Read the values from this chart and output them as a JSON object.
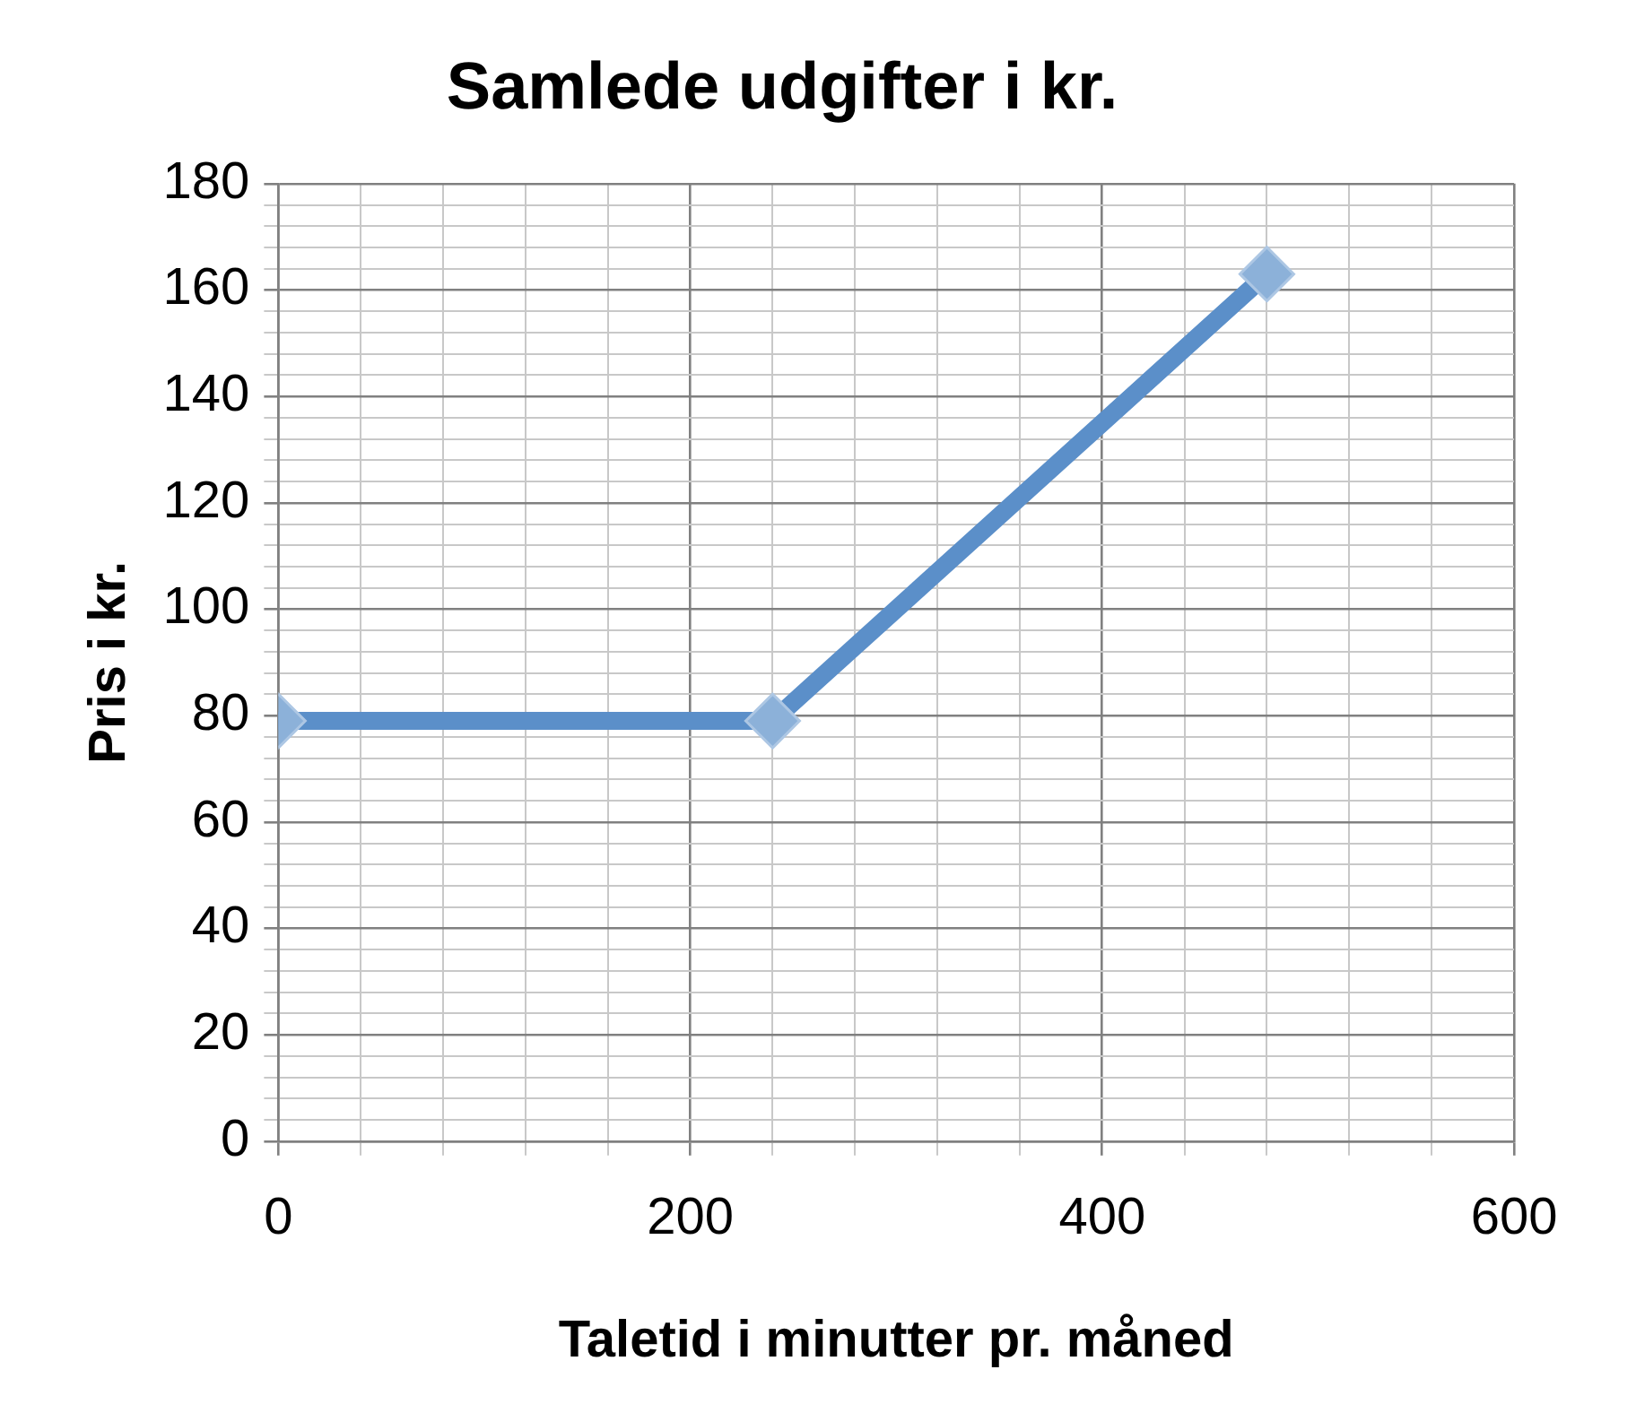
{
  "chart_data": {
    "type": "line",
    "title": "Samlede udgifter i kr.",
    "xlabel": "Taletid i minutter pr. måned",
    "ylabel": "Pris i kr.",
    "x": [
      0,
      240,
      480
    ],
    "series": [
      {
        "color": "#5b8fc9",
        "values": [
          79,
          79,
          163
        ]
      }
    ],
    "marker": "diamond",
    "grid": true,
    "xlim": [
      0,
      600
    ],
    "xticks": [
      0,
      {
        "value": 40,
        "label": null
      },
      {
        "value": 80,
        "label": null
      },
      {
        "value": 120,
        "label": null
      },
      {
        "value": 160,
        "label": null
      },
      200,
      {
        "value": 240,
        "label": null
      },
      {
        "value": 280,
        "label": null
      },
      {
        "value": 320,
        "label": null
      },
      {
        "value": 360,
        "label": null
      },
      400,
      {
        "value": 440,
        "label": null
      },
      {
        "value": 480,
        "label": null
      },
      {
        "value": 520,
        "label": null
      },
      {
        "value": 560,
        "label": null
      },
      600
    ],
    "ylim": [
      0,
      180
    ],
    "yticks": [
      0,
      {
        "value": 4,
        "label": null
      },
      {
        "value": 8,
        "label": null
      },
      {
        "value": 12,
        "label": null
      },
      {
        "value": 16,
        "label": null
      },
      20,
      {
        "value": 24,
        "label": null
      },
      {
        "value": 28,
        "label": null
      },
      {
        "value": 32,
        "label": null
      },
      {
        "value": 36,
        "label": null
      },
      40,
      {
        "value": 44,
        "label": null
      },
      {
        "value": 48,
        "label": null
      },
      {
        "value": 52,
        "label": null
      },
      {
        "value": 56,
        "label": null
      },
      60,
      {
        "value": 64,
        "label": null
      },
      {
        "value": 68,
        "label": null
      },
      {
        "value": 72,
        "label": null
      },
      {
        "value": 76,
        "label": null
      },
      80,
      {
        "value": 84,
        "label": null
      },
      {
        "value": 88,
        "label": null
      },
      {
        "value": 92,
        "label": null
      },
      {
        "value": 96,
        "label": null
      },
      100,
      {
        "value": 104,
        "label": null
      },
      {
        "value": 108,
        "label": null
      },
      {
        "value": 112,
        "label": null
      },
      {
        "value": 116,
        "label": null
      },
      120,
      {
        "value": 124,
        "label": null
      },
      {
        "value": 128,
        "label": null
      },
      {
        "value": 132,
        "label": null
      },
      {
        "value": 136,
        "label": null
      },
      140,
      {
        "value": 144,
        "label": null
      },
      {
        "value": 148,
        "label": null
      },
      {
        "value": 152,
        "label": null
      },
      {
        "value": 156,
        "label": null
      },
      160,
      {
        "value": 164,
        "label": null
      },
      {
        "value": 168,
        "label": null
      },
      {
        "value": 172,
        "label": null
      },
      {
        "value": 176,
        "label": null
      },
      180
    ]
  }
}
